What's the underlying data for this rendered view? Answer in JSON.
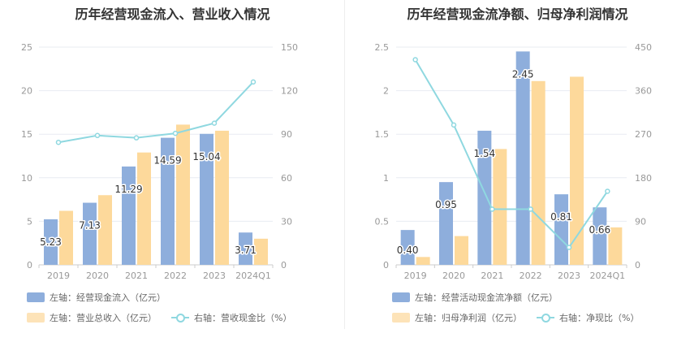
{
  "chart_data": [
    {
      "type": "bar",
      "title": "历年经营现金流入、营业收入情况",
      "categories": [
        "2019",
        "2020",
        "2021",
        "2022",
        "2023",
        "2024Q1"
      ],
      "left_axis": {
        "ticks": [
          "0",
          "5",
          "10",
          "15",
          "20",
          "25"
        ],
        "ylim": [
          0,
          25
        ]
      },
      "right_axis": {
        "ticks": [
          "0",
          "30",
          "60",
          "90",
          "120",
          "150"
        ],
        "ylim": [
          0,
          150
        ]
      },
      "series": [
        {
          "name": "左轴：经营现金流入（亿元）",
          "axis": "left",
          "kind": "bar",
          "color": "#8eaedc",
          "values": [
            5.23,
            7.13,
            11.29,
            14.59,
            15.04,
            3.71
          ],
          "labels": [
            "5.23",
            "7.13",
            "11.29",
            "14.59",
            "15.04",
            "3.71"
          ]
        },
        {
          "name": "左轴：营业总收入（亿元）",
          "axis": "left",
          "kind": "bar",
          "color": "#fdd99b",
          "values": [
            6.2,
            8.0,
            12.9,
            16.1,
            15.4,
            3.0
          ]
        },
        {
          "name": "右轴：营收现金比（%）",
          "axis": "right",
          "kind": "line",
          "color": "#8fd8e0",
          "values": [
            84.4,
            89.1,
            87.5,
            90.6,
            97.6,
            126.0
          ]
        }
      ]
    },
    {
      "type": "bar",
      "title": "历年经营现金流净额、归母净利润情况",
      "categories": [
        "2019",
        "2020",
        "2021",
        "2022",
        "2023",
        "2024Q1"
      ],
      "left_axis": {
        "ticks": [
          "0",
          "0.5",
          "1",
          "1.5",
          "2",
          "2.5"
        ],
        "ylim": [
          0,
          2.5
        ]
      },
      "right_axis": {
        "ticks": [
          "0",
          "90",
          "180",
          "270",
          "360",
          "450"
        ],
        "ylim": [
          0,
          450
        ]
      },
      "series": [
        {
          "name": "左轴：经营活动现金流净额（亿元）",
          "axis": "left",
          "kind": "bar",
          "color": "#8eaedc",
          "values": [
            0.4,
            0.95,
            1.54,
            2.45,
            0.81,
            0.66
          ],
          "labels": [
            "0.40",
            "0.95",
            "1.54",
            "2.45",
            "0.81",
            "0.66"
          ]
        },
        {
          "name": "左轴：归母净利润（亿元）",
          "axis": "left",
          "kind": "bar",
          "color": "#fdd99b",
          "values": [
            0.09,
            0.33,
            1.33,
            2.11,
            2.16,
            0.43
          ]
        },
        {
          "name": "右轴：净现比（%）",
          "axis": "right",
          "kind": "line",
          "color": "#8fd8e0",
          "values": [
            424,
            289,
            115,
            115,
            36,
            152
          ]
        }
      ]
    }
  ]
}
